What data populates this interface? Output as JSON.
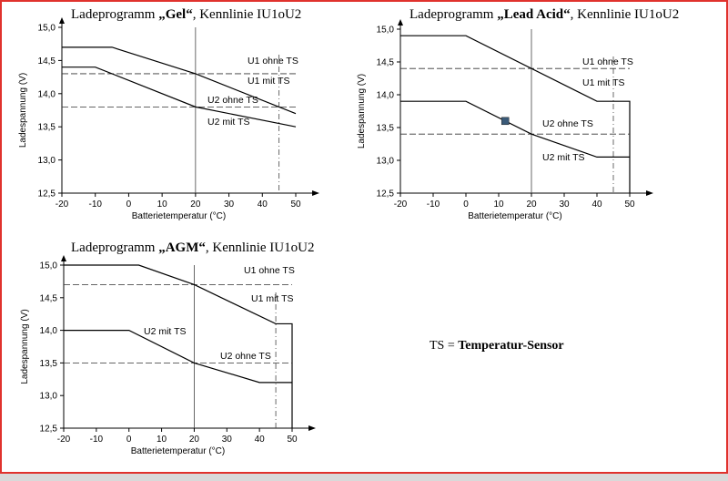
{
  "legend_note": {
    "abbr": "TS",
    "eq": " = ",
    "text": "Temperatur-Sensor"
  },
  "colors": {
    "frame": "#e0322d",
    "marker": "#3a5a78"
  },
  "chart_data": [
    {
      "id": "gel",
      "type": "line",
      "title": {
        "prefix": "Ladeprogramm ",
        "bold": "„Gel“",
        "suffix": ", Kennlinie IU1oU2"
      },
      "xlabel": "Batterietemperatur (°C)",
      "ylabel": "Ladespannung (V)",
      "xlim": [
        -20,
        50
      ],
      "ylim": [
        12.5,
        15.0
      ],
      "xticks": [
        "-20",
        "-10",
        "0",
        "10",
        "20",
        "30",
        "40",
        "50"
      ],
      "yticks": [
        "12,5",
        "13,0",
        "13,5",
        "14,0",
        "14,5",
        "15,0"
      ],
      "vlines": [
        20
      ],
      "dash_vlines": [
        45
      ],
      "series": [
        {
          "name": "U1 ohne TS",
          "style": "dashed",
          "x": [
            -20,
            50
          ],
          "y": [
            14.3,
            14.3
          ]
        },
        {
          "name": "U1 mit TS",
          "style": "solid",
          "x": [
            -20,
            -5,
            20,
            50
          ],
          "y": [
            14.7,
            14.7,
            14.3,
            13.7
          ]
        },
        {
          "name": "U2 ohne TS",
          "style": "dashed",
          "x": [
            -20,
            50
          ],
          "y": [
            13.8,
            13.8
          ]
        },
        {
          "name": "U2 mit TS",
          "style": "solid",
          "x": [
            -20,
            -10,
            20,
            50
          ],
          "y": [
            14.4,
            14.4,
            13.8,
            13.5
          ]
        }
      ],
      "labels": [
        "U1 ohne TS",
        "U1 mit TS",
        "U2 ohne TS",
        "U2 mit TS"
      ]
    },
    {
      "id": "lead",
      "type": "line",
      "title": {
        "prefix": "Ladeprogramm ",
        "bold": "„Lead Acid“",
        "suffix": ",  Kennlinie IU1oU2"
      },
      "xlabel": "Batterietemperatur (°C)",
      "ylabel": "Ladespannung (V)",
      "xlim": [
        -20,
        50
      ],
      "ylim": [
        12.5,
        15.0
      ],
      "xticks": [
        "-20",
        "-10",
        "0",
        "10",
        "20",
        "30",
        "40",
        "50"
      ],
      "yticks": [
        "12,5",
        "13,0",
        "13,5",
        "14,0",
        "14,5",
        "15,0"
      ],
      "vlines": [
        20
      ],
      "dash_vlines": [
        45
      ],
      "series": [
        {
          "name": "U1 ohne TS",
          "style": "dashed",
          "x": [
            -20,
            50
          ],
          "y": [
            14.4,
            14.4
          ]
        },
        {
          "name": "U1 mit TS",
          "style": "solid",
          "x": [
            -20,
            0,
            40,
            50,
            50
          ],
          "y": [
            14.9,
            14.9,
            13.9,
            13.9,
            12.5
          ]
        },
        {
          "name": "U2 ohne TS",
          "style": "dashed",
          "x": [
            -20,
            50
          ],
          "y": [
            13.4,
            13.4
          ]
        },
        {
          "name": "U2 mit TS",
          "style": "solid",
          "x": [
            -20,
            0,
            20,
            40,
            50
          ],
          "y": [
            13.9,
            13.9,
            13.4,
            13.05,
            13.05
          ]
        }
      ],
      "labels": [
        "U1 ohne TS",
        "U1 mit TS",
        "U2 ohne TS",
        "U2 mit TS"
      ],
      "marker": {
        "x": 12,
        "y": 13.6
      }
    },
    {
      "id": "agm",
      "type": "line",
      "title": {
        "prefix": "Ladeprogramm ",
        "bold": "„AGM“",
        "suffix": ", Kennlinie IU1oU2"
      },
      "xlabel": "Batterietemperatur (°C)",
      "ylabel": "Ladespannung (V)",
      "xlim": [
        -20,
        50
      ],
      "ylim": [
        12.5,
        15.0
      ],
      "xticks": [
        "-20",
        "-10",
        "0",
        "10",
        "20",
        "30",
        "40",
        "50"
      ],
      "yticks": [
        "12,5",
        "13,0",
        "13,5",
        "14,0",
        "14,5",
        "15,0"
      ],
      "vlines": [
        20
      ],
      "dash_vlines": [
        45
      ],
      "series": [
        {
          "name": "U1 ohne TS",
          "style": "dashed",
          "x": [
            -20,
            50
          ],
          "y": [
            14.7,
            14.7
          ]
        },
        {
          "name": "U1 mit TS",
          "style": "solid",
          "x": [
            -20,
            3,
            20,
            45,
            50,
            50
          ],
          "y": [
            15.0,
            15.0,
            14.7,
            14.1,
            14.1,
            12.5
          ]
        },
        {
          "name": "U2 ohne TS",
          "style": "dashed",
          "x": [
            -20,
            50
          ],
          "y": [
            13.5,
            13.5
          ]
        },
        {
          "name": "U2 mit TS",
          "style": "solid",
          "x": [
            -20,
            0,
            20,
            40,
            50
          ],
          "y": [
            14.0,
            14.0,
            13.5,
            13.2,
            13.2
          ]
        }
      ],
      "labels": [
        "U1 ohne TS",
        "U1 mit TS",
        "U2 mit TS",
        "U2 ohne TS"
      ]
    }
  ]
}
